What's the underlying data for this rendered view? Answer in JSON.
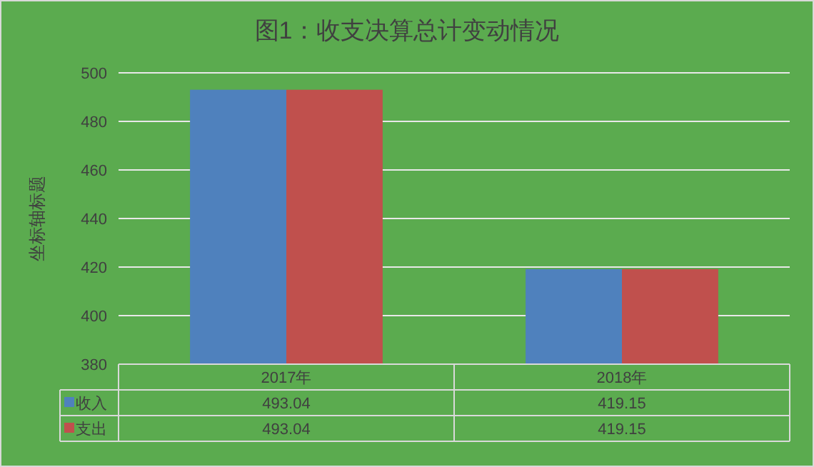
{
  "chart_data": {
    "type": "bar",
    "title": "图1：收支决算总计变动情况",
    "ylabel": "坐标轴标题",
    "categories": [
      "2017年",
      "2018年"
    ],
    "series": [
      {
        "name": "收入",
        "color": "#4f81bd",
        "values": [
          493.04,
          419.15
        ]
      },
      {
        "name": "支出",
        "color": "#c0504d",
        "values": [
          493.04,
          419.15
        ]
      }
    ],
    "ylim": [
      380,
      500
    ],
    "yticks": [
      380,
      400,
      420,
      440,
      460,
      480,
      500
    ],
    "grid": "y",
    "legend": "bottom",
    "data_labels": true
  }
}
